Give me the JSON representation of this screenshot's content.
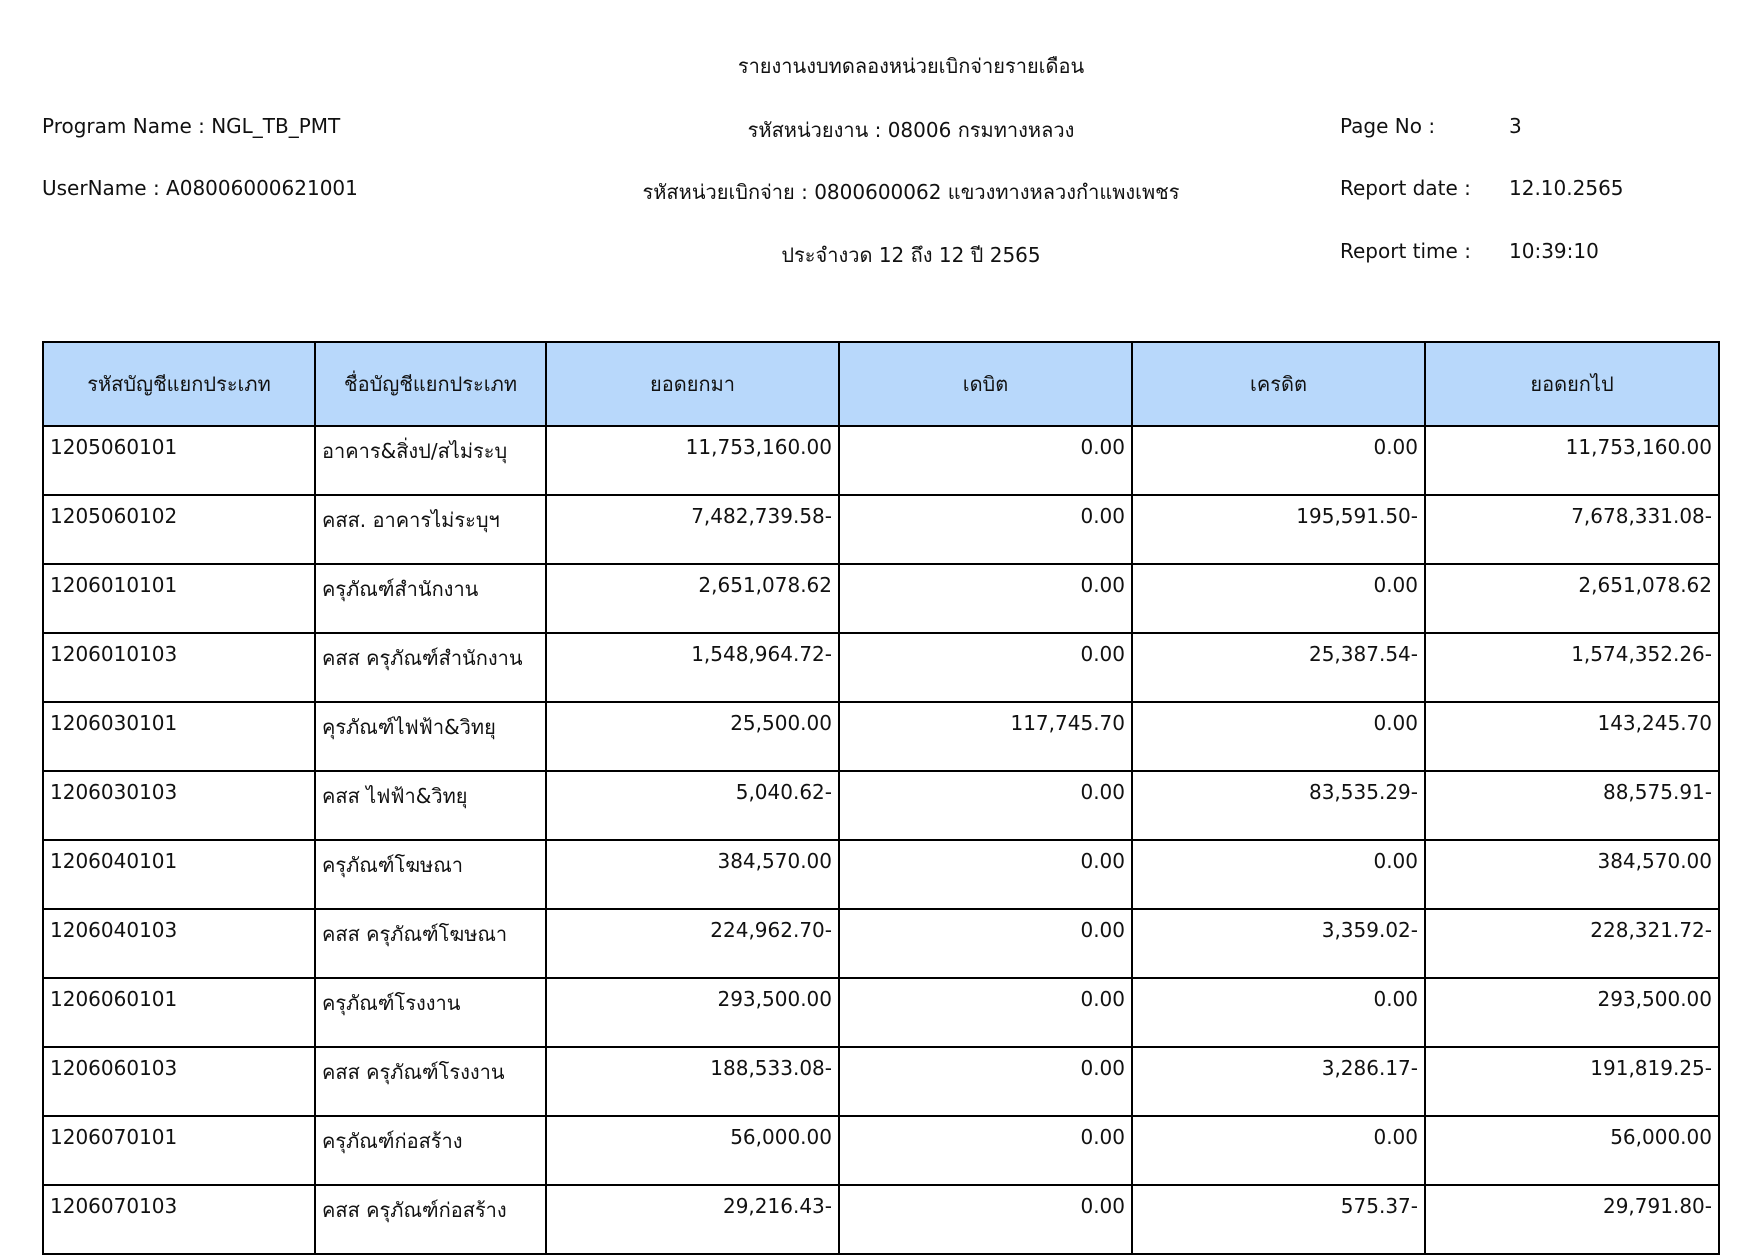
{
  "header": {
    "title": "รายงานงบทดลองหน่วยเบิกจ่ายรายเดือน",
    "program_name": "Program Name : NGL_TB_PMT",
    "user_name": "UserName : A08006000621001",
    "agency": "รหัสหน่วยงาน : 08006 กรมทางหลวง",
    "disbursing_unit": "รหัสหน่วยเบิกจ่าย : 0800600062 แขวงทางหลวงกำแพงเพชร",
    "period": "ประจำงวด 12 ถึง 12 ปี 2565",
    "page_no_label": "Page No :",
    "page_no": "3",
    "report_date_label": "Report date :",
    "report_date": "12.10.2565",
    "report_time_label": "Report time :",
    "report_time": "10:39:10"
  },
  "table": {
    "header_bg": "#b8d8fb",
    "columns": [
      "รหัสบัญชีแยกประเภท",
      "ชื่อบัญชีแยกประเภท",
      "ยอดยกมา",
      "เดบิต",
      "เครดิต",
      "ยอดยกไป"
    ],
    "rows": [
      [
        "1205060101",
        "อาคาร&สิ่งป/สไม่ระบุ",
        "11,753,160.00",
        "0.00",
        "0.00",
        "11,753,160.00"
      ],
      [
        "1205060102",
        "คสส. อาคารไม่ระบุฯ",
        "7,482,739.58-",
        "0.00",
        "195,591.50-",
        "7,678,331.08-"
      ],
      [
        "1206010101",
        "ครุภัณฑ์สำนักงาน",
        "2,651,078.62",
        "0.00",
        "0.00",
        "2,651,078.62"
      ],
      [
        "1206010103",
        "คสส ครุภัณฑ์สำนักงาน",
        "1,548,964.72-",
        "0.00",
        "25,387.54-",
        "1,574,352.26-"
      ],
      [
        "1206030101",
        "คุรภัณฑ์ไฟฟ้า&วิทยุ",
        "25,500.00",
        "117,745.70",
        "0.00",
        "143,245.70"
      ],
      [
        "1206030103",
        "คสส ไฟฟ้า&วิทยุ",
        "5,040.62-",
        "0.00",
        "83,535.29-",
        "88,575.91-"
      ],
      [
        "1206040101",
        "ครุภัณฑ์โฆษณา",
        "384,570.00",
        "0.00",
        "0.00",
        "384,570.00"
      ],
      [
        "1206040103",
        "คสส ครุภัณฑ์โฆษณา",
        "224,962.70-",
        "0.00",
        "3,359.02-",
        "228,321.72-"
      ],
      [
        "1206060101",
        "ครุภัณฑ์โรงงาน",
        "293,500.00",
        "0.00",
        "0.00",
        "293,500.00"
      ],
      [
        "1206060103",
        "คสส ครุภัณฑ์โรงงาน",
        "188,533.08-",
        "0.00",
        "3,286.17-",
        "191,819.25-"
      ],
      [
        "1206070101",
        "ครุภัณฑ์ก่อสร้าง",
        "56,000.00",
        "0.00",
        "0.00",
        "56,000.00"
      ],
      [
        "1206070103",
        "คสส ครุภัณฑ์ก่อสร้าง",
        "29,216.43-",
        "0.00",
        "575.37-",
        "29,791.80-"
      ]
    ]
  }
}
